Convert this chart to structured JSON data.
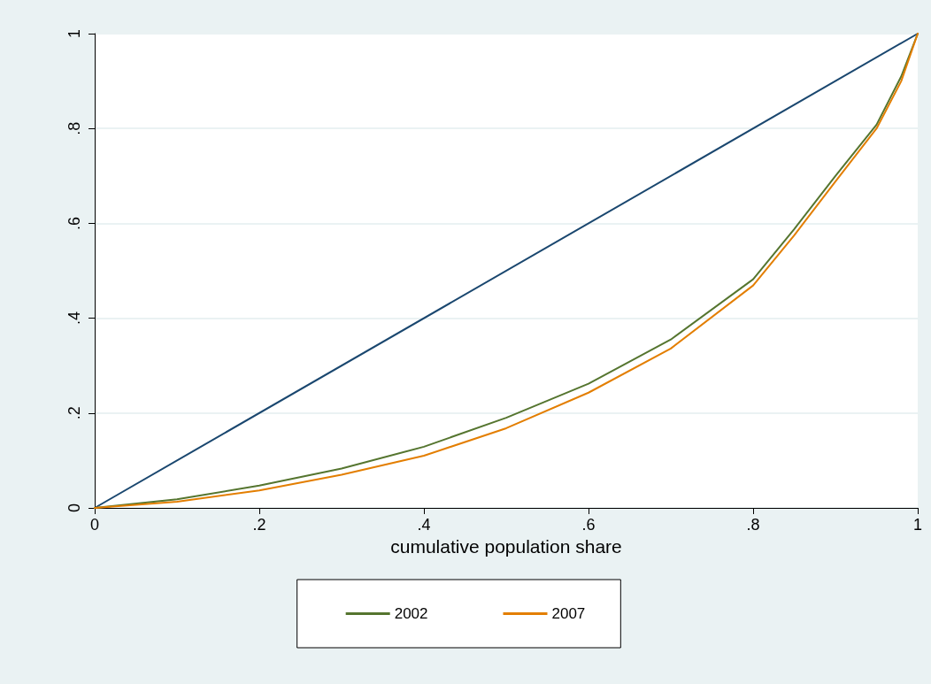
{
  "chart_data": {
    "type": "line",
    "xlabel": "cumulative population share",
    "series": [
      {
        "color": "#1a476f",
        "x": [
          0,
          1
        ],
        "values": [
          0,
          1
        ]
      },
      {
        "name": "2002",
        "color": "#55752f",
        "x": [
          0,
          0.1,
          0.2,
          0.3,
          0.4,
          0.5,
          0.6,
          0.7,
          0.8,
          0.85,
          0.9,
          0.95,
          0.98,
          1
        ],
        "values": [
          0,
          0.018,
          0.047,
          0.083,
          0.129,
          0.19,
          0.262,
          0.355,
          0.482,
          0.588,
          0.7,
          0.808,
          0.91,
          1
        ]
      },
      {
        "name": "2007",
        "color": "#e37e00",
        "x": [
          0,
          0.1,
          0.2,
          0.3,
          0.4,
          0.5,
          0.6,
          0.7,
          0.8,
          0.85,
          0.9,
          0.95,
          0.98,
          1
        ],
        "values": [
          0,
          0.013,
          0.037,
          0.07,
          0.11,
          0.168,
          0.243,
          0.336,
          0.469,
          0.575,
          0.688,
          0.8,
          0.9,
          1
        ]
      }
    ],
    "xlim": [
      0,
      1
    ],
    "ylim": [
      0,
      1
    ],
    "xticks": [
      0,
      {
        "value": 0.2,
        "label": ".2"
      },
      {
        "value": 0.4,
        "label": ".4"
      },
      {
        "value": 0.6,
        "label": ".6"
      },
      {
        "value": 0.8,
        "label": ".8"
      },
      1
    ],
    "yticks": [
      0,
      {
        "value": 0.2,
        "label": ".2"
      },
      {
        "value": 0.4,
        "label": ".4"
      },
      {
        "value": 0.6,
        "label": ".6"
      },
      {
        "value": 0.8,
        "label": ".8"
      },
      1
    ],
    "grid": "y",
    "legend": "bottom",
    "marker": "none",
    "line_style": "solid"
  }
}
